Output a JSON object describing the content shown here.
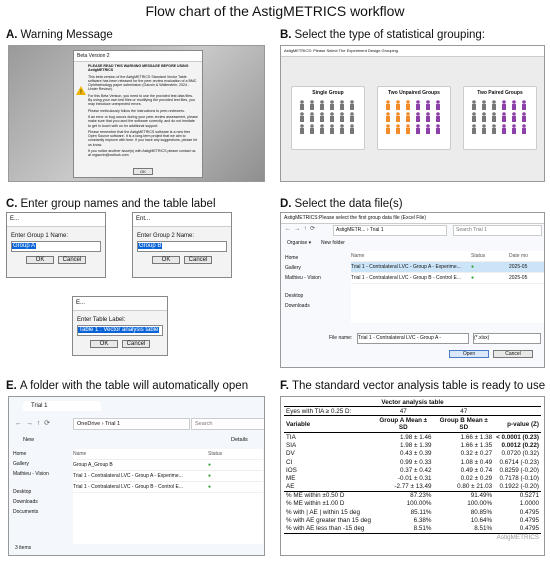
{
  "title": "Flow chart of the AstigMETRICS workflow",
  "a": {
    "label": "A.",
    "caption": "Warning Message",
    "window_title": "Beta Version 2",
    "heading": "PLEASE READ THIS WARNING MESSAGE BEFORE USING AstigMETRICS",
    "paragraphs": [
      "This beta version of the AstigMETRICS Standard Vector Table software has been released for the peer-review evaluation of a BMC Ophthalmology paper submission (Gauvin & Wallerstein, 2024 - Under Review).",
      "For this Beta Version, you need to use the provided test data files. By using your own test files or modifying the provided test files, you may introduce unexpected errors.",
      "Please meticulously follow the instructions to peer-reviewers.",
      "If an error or bug occurs during your peer-review assessment, please make sure that you used the software correctly, and do not hesitate to get in touch with us for additional support.",
      "Please remember that the AstigMETRICS software is a new free Open Source software. It is a long-term project that we aim to constantly improve with time. If you have any suggestions, please let us know.",
      "If you notice another issue(s) with AstigMETRICS please contact us at mgauvin@outlook.com"
    ],
    "button": "OK"
  },
  "b": {
    "label": "B.",
    "caption": "Select the type of statistical grouping:",
    "window_title": "AstigMETRICS: Please Select The Experiment Design Grouping",
    "options": [
      "Single Group",
      "Two Unpaired Groups",
      "Two Paired Groups"
    ]
  },
  "c": {
    "label": "C.",
    "caption": "Enter group names and the table label",
    "dialogs": [
      {
        "window_title": "E...",
        "prompt": "Enter Group 1 Name:",
        "input": "Group A",
        "ok": "OK",
        "cancel": "Cancel"
      },
      {
        "window_title": "Ent...",
        "prompt": "Enter Group 2 Name:",
        "input": "Group B",
        "ok": "OK",
        "cancel": "Cancel"
      },
      {
        "window_title": "E...",
        "prompt": "Enter Table Label:",
        "input": "Table 1 : Vector analysis table",
        "ok": "OK",
        "cancel": "Cancel"
      }
    ]
  },
  "d": {
    "label": "D.",
    "caption": "Select the data file(s)",
    "window_title": "AstigMETRICS:Please select the first group data file (Excel File)",
    "path": "AstigMETR... › Trial 1",
    "search": "Search Trial 1",
    "organise": "Organise ▾",
    "new_folder": "New folder",
    "sidebar": [
      "Home",
      "Gallery",
      "Mathieu - Vision",
      "Desktop",
      "Downloads"
    ],
    "columns": [
      "Name",
      "Status",
      "Date mo"
    ],
    "files": [
      {
        "name": "Trial 1 - Contralateral LVC - Group A - Experime...",
        "date": "2025-05"
      },
      {
        "name": "Trial 1 - Contralateral LVC - Group B - Control E...",
        "date": "2025-05"
      }
    ],
    "file_name_label": "File name:",
    "file_name": "Trial 1 - Contralateral LVC - Group A - ",
    "filter": "(*.xlsx)",
    "open": "Open",
    "cancel": "Cancel"
  },
  "e": {
    "label": "E.",
    "caption": "A folder with the table will automatically open",
    "tab": "Trial 1",
    "new": "New",
    "path": "OneDrive › Trial 1",
    "search": "Search",
    "details": "Details",
    "sidebar": [
      "Home",
      "Gallery",
      "Mathieu - Vision",
      "Desktop",
      "Downloads",
      "Documents"
    ],
    "columns": [
      "Name",
      "Status"
    ],
    "files": [
      "Group A_Group B",
      "Trial 1 - Contralateral LVC - Group A - Experime...",
      "Trial 1 - Contralateral LVC - Group B - Control E..."
    ],
    "footer": "3 items"
  },
  "f": {
    "label": "F.",
    "caption": "The standard vector analysis table is ready to use",
    "table": {
      "title": "Vector analysis table",
      "eyes": [
        "Eyes with TIA ≥ 0.25 D:",
        "47",
        "47"
      ],
      "header": [
        "Variable",
        "Group A Mean ± SD",
        "Group B Mean ± SD",
        "p-value (Z)"
      ],
      "rows": [
        [
          "TIA",
          "1.98 ± 1.46",
          "1.66 ± 1.38",
          "< 0.0001 (0.23)"
        ],
        [
          "SIA",
          "1.98 ± 1.39",
          "1.66 ± 1.35",
          "0.0012 (0.22)"
        ],
        [
          "DV",
          "0.43 ± 0.39",
          "0.32 ± 0.27",
          "0.0720 (0.32)"
        ],
        [
          "CI",
          "0.99 ± 0.33",
          "1.08 ± 0.49",
          "0.6714 (-0.23)"
        ],
        [
          "IOS",
          "0.37 ± 0.42",
          "0.49 ± 0.74",
          "0.8259 (-0.20)"
        ],
        [
          "ME",
          "-0.01 ± 0.31",
          "0.02 ± 0.29",
          "0.7178 (-0.10)"
        ],
        [
          "AE",
          "-2.77 ± 13.49",
          "0.80 ± 21.03",
          "0.1922 (-0.20)"
        ]
      ],
      "percent_rows": [
        [
          "% ME within ±0.50 D",
          "87.23%",
          "91.49%",
          "0.5271"
        ],
        [
          "% ME within ±1.00 D",
          "100.00%",
          "100.00%",
          "1.0000"
        ],
        [
          "% with | AE | within 15 deg",
          "85.11%",
          "80.85%",
          "0.4795"
        ],
        [
          "% with AE greater than 15 deg",
          "6.38%",
          "10.64%",
          "0.4795"
        ],
        [
          "% with AE less than -15 deg",
          "8.51%",
          "8.51%",
          "0.4795"
        ]
      ],
      "footer": "AstigMETRICS"
    }
  }
}
